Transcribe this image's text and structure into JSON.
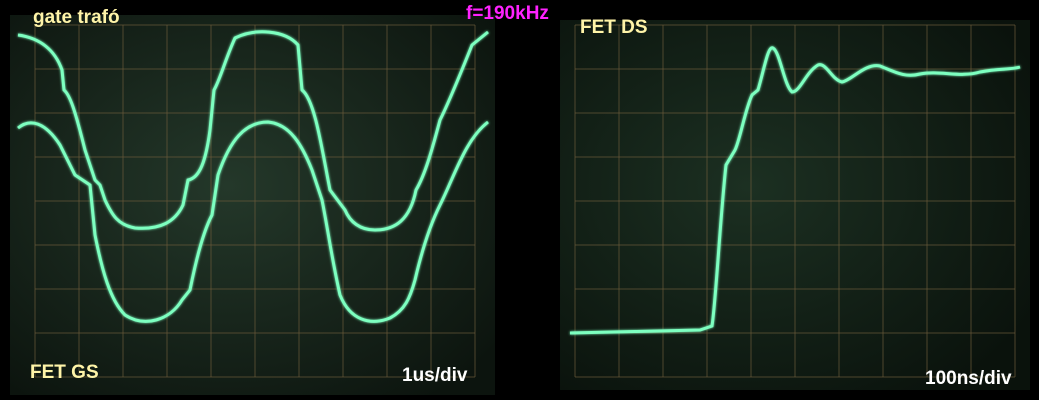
{
  "labels": {
    "left_top": "gate trafó",
    "left_bottom": "FET GS",
    "left_timebase": "1us/div",
    "frequency": "f=190kHz",
    "right_top": "FET DS",
    "right_timebase": "100ns/div"
  },
  "colors": {
    "trace": "#7dffc0",
    "label_yellow": "#fff4a8",
    "label_white": "#ffffff",
    "label_magenta": "#ff22ff",
    "grid": "#6a5a3a",
    "screen": "#1a2a1e"
  }
}
